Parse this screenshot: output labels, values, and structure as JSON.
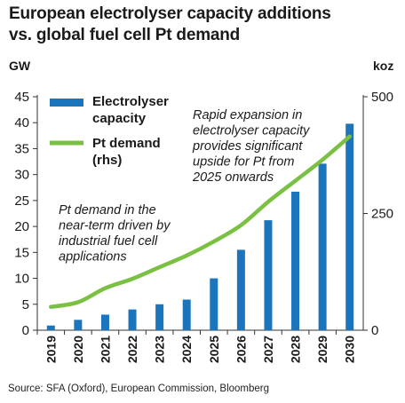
{
  "chart_data": {
    "type": "bar",
    "title_lines": [
      "European electrolyser capacity additions",
      "vs. global fuel cell Pt demand"
    ],
    "left_axis_unit": "GW",
    "right_axis_unit": "koz",
    "categories": [
      "2019",
      "2020",
      "2021",
      "2022",
      "2023",
      "2024",
      "2025",
      "2026",
      "2027",
      "2028",
      "2029",
      "2030"
    ],
    "series": [
      {
        "name_lines": [
          "Electrolyser",
          "capacity"
        ],
        "type": "bar",
        "axis": "left",
        "color": "#1b75bc",
        "values": [
          0.9,
          2.0,
          3.0,
          4.0,
          5.0,
          5.9,
          10.0,
          15.5,
          21.2,
          26.7,
          32.1,
          39.8
        ]
      },
      {
        "name_lines": [
          "Pt demand",
          "(rhs)"
        ],
        "type": "line",
        "axis": "right",
        "color": "#7ac143",
        "values": [
          50,
          60,
          90,
          110,
          135,
          160,
          190,
          225,
          275,
          320,
          365,
          415
        ]
      }
    ],
    "ylim_left": [
      0,
      45
    ],
    "yticks_left": [
      0,
      5,
      10,
      15,
      20,
      25,
      30,
      35,
      40,
      45
    ],
    "ylim_right": [
      0,
      500
    ],
    "yticks_right": [
      0,
      250,
      500
    ],
    "annotations": [
      {
        "lines": [
          "Rapid expansion in",
          "electrolyser capacity",
          "provides significant",
          "upside for Pt from",
          "2025 onwards"
        ]
      },
      {
        "lines": [
          "Pt demand in the",
          "near-term driven by",
          "industrial fuel cell",
          "applications"
        ]
      }
    ],
    "source": "Source: SFA (Oxford), European Commission, Bloomberg",
    "grid": false,
    "legend_position": "top-left"
  }
}
